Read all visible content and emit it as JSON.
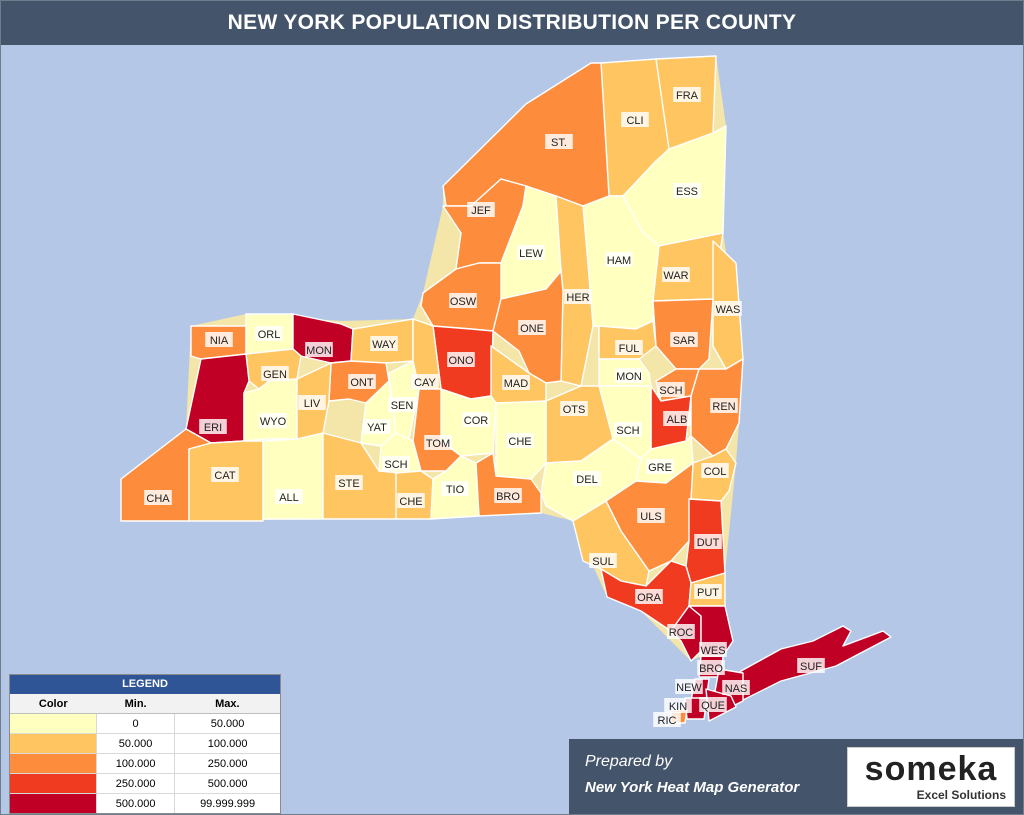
{
  "title": "NEW YORK POPULATION DISTRIBUTION PER COUNTY",
  "legend": {
    "title": "LEGEND",
    "headers": [
      "Color",
      "Min.",
      "Max."
    ],
    "rows": [
      {
        "min": "0",
        "max": "50.000",
        "color": "#ffffbf"
      },
      {
        "min": "50.000",
        "max": "100.000",
        "color": "#fec561"
      },
      {
        "min": "100.000",
        "max": "250.000",
        "color": "#fd8d3c"
      },
      {
        "min": "250.000",
        "max": "500.000",
        "color": "#f03b20"
      },
      {
        "min": "500.000",
        "max": "99.999.999",
        "color": "#c00025"
      }
    ]
  },
  "counties": [
    {
      "abbr": "CLI",
      "tier": 1
    },
    {
      "abbr": "FRA",
      "tier": 1
    },
    {
      "abbr": "ST.",
      "tier": 2
    },
    {
      "abbr": "JEF",
      "tier": 2
    },
    {
      "abbr": "LEW",
      "tier": 0
    },
    {
      "abbr": "ESS",
      "tier": 0
    },
    {
      "abbr": "HAM",
      "tier": 0
    },
    {
      "abbr": "HER",
      "tier": 1
    },
    {
      "abbr": "WAR",
      "tier": 1
    },
    {
      "abbr": "WAS",
      "tier": 1
    },
    {
      "abbr": "OSW",
      "tier": 2
    },
    {
      "abbr": "ONE",
      "tier": 2
    },
    {
      "abbr": "NIA",
      "tier": 2
    },
    {
      "abbr": "ORL",
      "tier": 0
    },
    {
      "abbr": "MON",
      "tier": 4
    },
    {
      "abbr": "WAY",
      "tier": 1
    },
    {
      "abbr": "ONO",
      "tier": 3
    },
    {
      "abbr": "FUL",
      "tier": 1
    },
    {
      "abbr": "SAR",
      "tier": 2
    },
    {
      "abbr": "GEN",
      "tier": 1
    },
    {
      "abbr": "CAY",
      "tier": 1
    },
    {
      "abbr": "ONT",
      "tier": 2
    },
    {
      "abbr": "MAD",
      "tier": 1
    },
    {
      "abbr": "MON",
      "tier": 0
    },
    {
      "abbr": "SCH",
      "tier": 2
    },
    {
      "abbr": "ERI",
      "tier": 4
    },
    {
      "abbr": "WYO",
      "tier": 0
    },
    {
      "abbr": "LIV",
      "tier": 1
    },
    {
      "abbr": "SEN",
      "tier": 0
    },
    {
      "abbr": "YAT",
      "tier": 0
    },
    {
      "abbr": "OTS",
      "tier": 1
    },
    {
      "abbr": "ALB",
      "tier": 3
    },
    {
      "abbr": "REN",
      "tier": 2
    },
    {
      "abbr": "COR",
      "tier": 0
    },
    {
      "abbr": "SCH",
      "tier": 0
    },
    {
      "abbr": "CHE",
      "tier": 0
    },
    {
      "abbr": "TOM",
      "tier": 2
    },
    {
      "abbr": "SCH",
      "tier": 0
    },
    {
      "abbr": "CHA",
      "tier": 2
    },
    {
      "abbr": "CAT",
      "tier": 1
    },
    {
      "abbr": "ALL",
      "tier": 0
    },
    {
      "abbr": "STE",
      "tier": 1
    },
    {
      "abbr": "CHE",
      "tier": 1
    },
    {
      "abbr": "TIO",
      "tier": 0
    },
    {
      "abbr": "BRO",
      "tier": 2
    },
    {
      "abbr": "DEL",
      "tier": 0
    },
    {
      "abbr": "GRE",
      "tier": 0
    },
    {
      "abbr": "COL",
      "tier": 1
    },
    {
      "abbr": "ULS",
      "tier": 2
    },
    {
      "abbr": "DUT",
      "tier": 3
    },
    {
      "abbr": "SUL",
      "tier": 1
    },
    {
      "abbr": "ORA",
      "tier": 3
    },
    {
      "abbr": "PUT",
      "tier": 1
    },
    {
      "abbr": "ROC",
      "tier": 4
    },
    {
      "abbr": "WES",
      "tier": 4
    },
    {
      "abbr": "BRO",
      "tier": 4
    },
    {
      "abbr": "SUF",
      "tier": 4
    },
    {
      "abbr": "NEW",
      "tier": 4
    },
    {
      "abbr": "NAS",
      "tier": 4
    },
    {
      "abbr": "KIN",
      "tier": 4
    },
    {
      "abbr": "QUE",
      "tier": 4
    },
    {
      "abbr": "RIC",
      "tier": 2
    }
  ],
  "footer": {
    "prepared_by": "Prepared by",
    "generator": "New York Heat Map Generator",
    "logo_text": "someka",
    "logo_subtext": "Excel Solutions"
  }
}
